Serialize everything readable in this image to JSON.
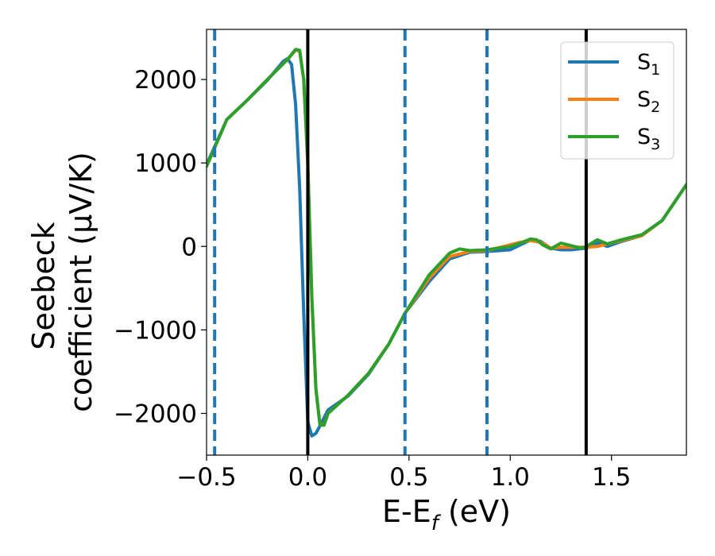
{
  "chart_data": {
    "type": "line",
    "xlabel": "E-E",
    "xlabel_sub": "f",
    "xlabel_unit": " (eV)",
    "ylabel_line1": "Seebeck",
    "ylabel_line2": "coefficient  (μV/K)",
    "xlim": [
      -0.5,
      1.87
    ],
    "ylim": [
      -2500,
      2600
    ],
    "xticks": [
      -0.5,
      0.0,
      0.5,
      1.0,
      1.5
    ],
    "xtick_labels": [
      "−0.5",
      "0.0",
      "0.5",
      "1.0",
      "1.5"
    ],
    "yticks": [
      -2000,
      -1000,
      0,
      1000,
      2000
    ],
    "ytick_labels": [
      "−2000",
      "−1000",
      "0",
      "1000",
      "2000"
    ],
    "legend_position": "top-right",
    "vlines_solid": [
      0.0,
      1.375
    ],
    "vlines_dashed": [
      -0.46,
      0.48,
      0.885
    ],
    "series": [
      {
        "name": "S",
        "sub": "1",
        "color": "#1f77b4",
        "points": [
          [
            -0.5,
            980
          ],
          [
            -0.4,
            1520
          ],
          [
            -0.3,
            1750
          ],
          [
            -0.2,
            1990
          ],
          [
            -0.12,
            2220
          ],
          [
            -0.1,
            2250
          ],
          [
            -0.08,
            2180
          ],
          [
            -0.06,
            1700
          ],
          [
            -0.04,
            700
          ],
          [
            -0.02,
            -800
          ],
          [
            0.0,
            -2100
          ],
          [
            0.02,
            -2270
          ],
          [
            0.04,
            -2240
          ],
          [
            0.06,
            -2150
          ],
          [
            0.1,
            -1960
          ],
          [
            0.2,
            -1790
          ],
          [
            0.3,
            -1530
          ],
          [
            0.4,
            -1170
          ],
          [
            0.48,
            -800
          ],
          [
            0.6,
            -420
          ],
          [
            0.7,
            -150
          ],
          [
            0.8,
            -70
          ],
          [
            0.885,
            -60
          ],
          [
            1.0,
            -40
          ],
          [
            1.05,
            20
          ],
          [
            1.1,
            75
          ],
          [
            1.15,
            60
          ],
          [
            1.2,
            -20
          ],
          [
            1.25,
            -40
          ],
          [
            1.3,
            -40
          ],
          [
            1.375,
            -20
          ],
          [
            1.43,
            40
          ],
          [
            1.48,
            0
          ],
          [
            1.55,
            60
          ],
          [
            1.65,
            130
          ],
          [
            1.75,
            310
          ],
          [
            1.87,
            740
          ]
        ]
      },
      {
        "name": "S",
        "sub": "2",
        "color": "#ff7f0e",
        "points": [
          [
            -0.5,
            960
          ],
          [
            -0.4,
            1520
          ],
          [
            -0.3,
            1750
          ],
          [
            -0.2,
            2000
          ],
          [
            -0.1,
            2240
          ],
          [
            -0.06,
            2350
          ],
          [
            -0.04,
            2340
          ],
          [
            -0.02,
            2000
          ],
          [
            0.0,
            1000
          ],
          [
            0.02,
            -600
          ],
          [
            0.04,
            -1700
          ],
          [
            0.06,
            -2130
          ],
          [
            0.08,
            -2140
          ],
          [
            0.1,
            -2000
          ],
          [
            0.2,
            -1780
          ],
          [
            0.3,
            -1520
          ],
          [
            0.4,
            -1170
          ],
          [
            0.48,
            -800
          ],
          [
            0.6,
            -380
          ],
          [
            0.7,
            -120
          ],
          [
            0.8,
            -60
          ],
          [
            0.885,
            -50
          ],
          [
            1.0,
            20
          ],
          [
            1.05,
            50
          ],
          [
            1.1,
            70
          ],
          [
            1.15,
            50
          ],
          [
            1.2,
            -20
          ],
          [
            1.25,
            -10
          ],
          [
            1.3,
            -10
          ],
          [
            1.375,
            -10
          ],
          [
            1.43,
            0
          ],
          [
            1.48,
            30
          ],
          [
            1.55,
            70
          ],
          [
            1.65,
            130
          ],
          [
            1.75,
            310
          ],
          [
            1.87,
            740
          ]
        ]
      },
      {
        "name": "S",
        "sub": "3",
        "color": "#2ca02c",
        "points": [
          [
            -0.5,
            960
          ],
          [
            -0.4,
            1520
          ],
          [
            -0.3,
            1750
          ],
          [
            -0.2,
            2000
          ],
          [
            -0.1,
            2240
          ],
          [
            -0.06,
            2360
          ],
          [
            -0.04,
            2350
          ],
          [
            -0.02,
            2000
          ],
          [
            0.0,
            1000
          ],
          [
            0.02,
            -600
          ],
          [
            0.04,
            -1700
          ],
          [
            0.06,
            -2140
          ],
          [
            0.08,
            -2140
          ],
          [
            0.1,
            -2000
          ],
          [
            0.2,
            -1780
          ],
          [
            0.3,
            -1520
          ],
          [
            0.4,
            -1170
          ],
          [
            0.48,
            -800
          ],
          [
            0.6,
            -340
          ],
          [
            0.7,
            -80
          ],
          [
            0.75,
            -30
          ],
          [
            0.8,
            -50
          ],
          [
            0.885,
            -40
          ],
          [
            1.0,
            0
          ],
          [
            1.05,
            40
          ],
          [
            1.1,
            90
          ],
          [
            1.13,
            80
          ],
          [
            1.16,
            20
          ],
          [
            1.2,
            -30
          ],
          [
            1.25,
            40
          ],
          [
            1.3,
            10
          ],
          [
            1.35,
            -20
          ],
          [
            1.375,
            0
          ],
          [
            1.43,
            80
          ],
          [
            1.48,
            30
          ],
          [
            1.55,
            80
          ],
          [
            1.65,
            140
          ],
          [
            1.75,
            310
          ],
          [
            1.87,
            740
          ]
        ]
      }
    ]
  }
}
